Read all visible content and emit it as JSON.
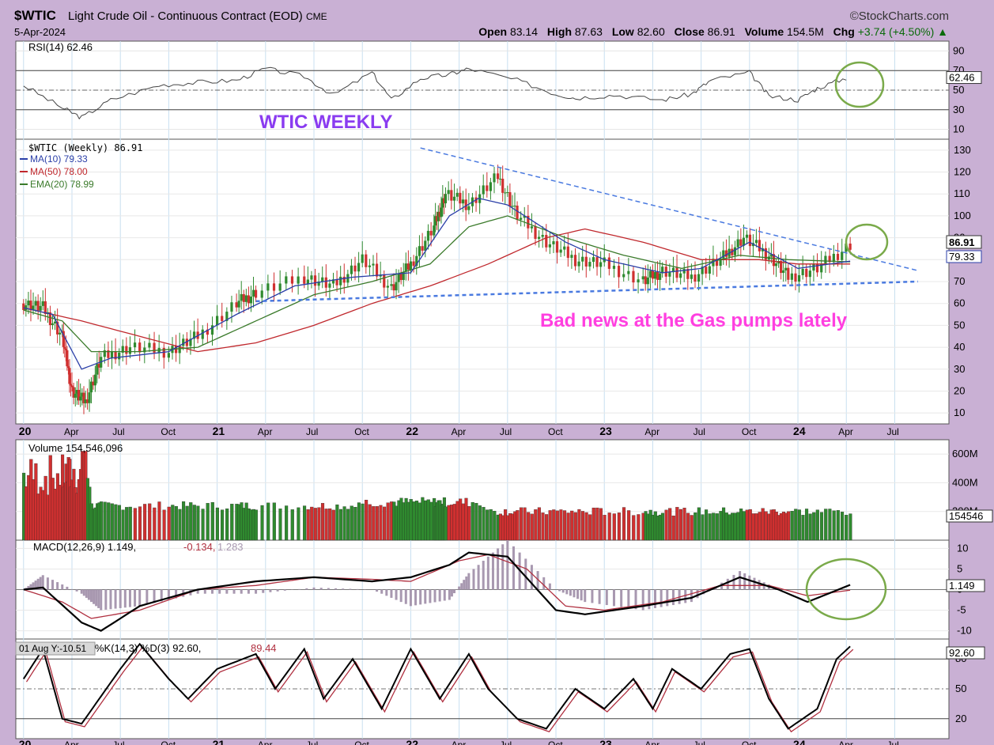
{
  "header": {
    "symbol": "$WTIC",
    "description": "Light Crude Oil - Continuous Contract (EOD)",
    "exchange": "CME",
    "date": "5-Apr-2024",
    "logo": "©StockCharts.com",
    "open_label": "Open",
    "open": "83.14",
    "high_label": "High",
    "high": "87.63",
    "low_label": "Low",
    "low": "82.60",
    "close_label": "Close",
    "close": "86.91",
    "volume_label": "Volume",
    "volume": "154.5M",
    "chg_label": "Chg",
    "chg": "+3.74 (+4.50%)"
  },
  "colors": {
    "up": "#2f8a2f",
    "down": "#d03030",
    "ma10": "#2b3fa8",
    "ma50": "#c0282d",
    "ema20": "#3a7a2a",
    "annotation_purple": "#8a3cf0",
    "annotation_pink": "#ff3fe0",
    "circle": "#7aaa4a",
    "trendline": "#4a7ae0"
  },
  "chart_data": [
    {
      "type": "line",
      "panel": "RSI",
      "legend": "RSI(14) 62.46",
      "last_label": "62.46",
      "yticks": [
        10,
        30,
        50,
        70,
        90
      ],
      "ylim": [
        0,
        100
      ],
      "values": [
        [
          2020.0,
          55
        ],
        [
          2020.2,
          32
        ],
        [
          2020.3,
          22
        ],
        [
          2020.45,
          40
        ],
        [
          2020.7,
          55
        ],
        [
          2020.9,
          58
        ],
        [
          2021.1,
          60
        ],
        [
          2021.25,
          72
        ],
        [
          2021.45,
          64
        ],
        [
          2021.6,
          45
        ],
        [
          2021.8,
          68
        ],
        [
          2021.9,
          40
        ],
        [
          2022.05,
          62
        ],
        [
          2022.2,
          66
        ],
        [
          2022.3,
          72
        ],
        [
          2022.55,
          60
        ],
        [
          2022.75,
          46
        ],
        [
          2022.85,
          42
        ],
        [
          2023.05,
          45
        ],
        [
          2023.3,
          40
        ],
        [
          2023.45,
          46
        ],
        [
          2023.55,
          60
        ],
        [
          2023.75,
          68
        ],
        [
          2023.85,
          44
        ],
        [
          2024.0,
          40
        ],
        [
          2024.1,
          52
        ],
        [
          2024.25,
          62.46
        ]
      ],
      "annotation": "WTIC WEEKLY"
    },
    {
      "type": "candlestick",
      "panel": "price",
      "legend": [
        "$WTIC (Weekly) 86.91",
        "MA(10) 79.33",
        "MA(50) 78.00",
        "EMA(20) 78.99"
      ],
      "yticks": [
        10,
        20,
        30,
        40,
        50,
        60,
        70,
        80,
        90,
        100,
        110,
        120,
        130
      ],
      "ylim": [
        5,
        135
      ],
      "last_price_label": "86.91",
      "ma10_label": "79.33",
      "xlabels": [
        "20",
        "Apr",
        "Jul",
        "Oct",
        "21",
        "Apr",
        "Jul",
        "Oct",
        "22",
        "Apr",
        "Jul",
        "Oct",
        "23",
        "Apr",
        "Jul",
        "Oct",
        "24",
        "Apr",
        "Jul"
      ],
      "xpositions": [
        2020.0,
        2020.25,
        2020.5,
        2020.75,
        2021.0,
        2021.25,
        2021.5,
        2021.75,
        2022.0,
        2022.25,
        2022.5,
        2022.75,
        2023.0,
        2023.25,
        2023.5,
        2023.75,
        2024.0,
        2024.25,
        2024.5
      ],
      "close": [
        [
          2020.0,
          60
        ],
        [
          2020.1,
          58
        ],
        [
          2020.2,
          45
        ],
        [
          2020.25,
          20
        ],
        [
          2020.32,
          15
        ],
        [
          2020.4,
          35
        ],
        [
          2020.55,
          40
        ],
        [
          2020.75,
          38
        ],
        [
          2020.9,
          45
        ],
        [
          2021.1,
          60
        ],
        [
          2021.2,
          65
        ],
        [
          2021.45,
          72
        ],
        [
          2021.6,
          68
        ],
        [
          2021.75,
          80
        ],
        [
          2021.9,
          67
        ],
        [
          2022.0,
          78
        ],
        [
          2022.12,
          95
        ],
        [
          2022.18,
          110
        ],
        [
          2022.3,
          105
        ],
        [
          2022.45,
          118
        ],
        [
          2022.55,
          100
        ],
        [
          2022.7,
          88
        ],
        [
          2022.85,
          80
        ],
        [
          2023.0,
          78
        ],
        [
          2023.2,
          70
        ],
        [
          2023.3,
          75
        ],
        [
          2023.45,
          72
        ],
        [
          2023.6,
          80
        ],
        [
          2023.72,
          90
        ],
        [
          2023.85,
          82
        ],
        [
          2023.95,
          72
        ],
        [
          2024.1,
          76
        ],
        [
          2024.27,
          86.91
        ]
      ],
      "ma50": [
        [
          2020.0,
          58
        ],
        [
          2020.3,
          52
        ],
        [
          2020.6,
          45
        ],
        [
          2020.9,
          38
        ],
        [
          2021.2,
          42
        ],
        [
          2021.5,
          50
        ],
        [
          2021.8,
          60
        ],
        [
          2022.1,
          68
        ],
        [
          2022.4,
          78
        ],
        [
          2022.7,
          90
        ],
        [
          2022.9,
          94
        ],
        [
          2023.2,
          88
        ],
        [
          2023.5,
          80
        ],
        [
          2023.8,
          80
        ],
        [
          2024.0,
          78
        ],
        [
          2024.27,
          78
        ]
      ],
      "ma10": [
        [
          2020.0,
          58
        ],
        [
          2020.15,
          55
        ],
        [
          2020.3,
          30
        ],
        [
          2020.45,
          35
        ],
        [
          2020.75,
          38
        ],
        [
          2021.1,
          55
        ],
        [
          2021.4,
          68
        ],
        [
          2021.7,
          72
        ],
        [
          2022.0,
          74
        ],
        [
          2022.2,
          100
        ],
        [
          2022.35,
          108
        ],
        [
          2022.5,
          105
        ],
        [
          2022.8,
          88
        ],
        [
          2023.0,
          80
        ],
        [
          2023.3,
          74
        ],
        [
          2023.5,
          76
        ],
        [
          2023.75,
          88
        ],
        [
          2024.0,
          76
        ],
        [
          2024.27,
          79.33
        ]
      ],
      "ema20": [
        [
          2020.0,
          57
        ],
        [
          2020.2,
          52
        ],
        [
          2020.35,
          38
        ],
        [
          2020.6,
          38
        ],
        [
          2020.9,
          40
        ],
        [
          2021.2,
          52
        ],
        [
          2021.5,
          64
        ],
        [
          2021.8,
          70
        ],
        [
          2022.1,
          78
        ],
        [
          2022.3,
          95
        ],
        [
          2022.5,
          100
        ],
        [
          2022.8,
          90
        ],
        [
          2023.1,
          82
        ],
        [
          2023.4,
          76
        ],
        [
          2023.7,
          82
        ],
        [
          2023.95,
          80
        ],
        [
          2024.27,
          78.99
        ]
      ],
      "annotation": "Bad news at the Gas pumps lately"
    },
    {
      "type": "bar",
      "panel": "volume",
      "legend": "Volume 154,546,096",
      "last_label": "154546",
      "yticks_labels": [
        "600M",
        "400M",
        "200M"
      ],
      "yticks": [
        600,
        400,
        200
      ],
      "ylim": [
        0,
        700
      ]
    },
    {
      "type": "line",
      "panel": "MACD",
      "legend_main": "MACD(12,26,9) 1.149,",
      "legend_signal": "-0.134,",
      "legend_hist": "1.283",
      "last_label": "1.149",
      "yticks": [
        10,
        5,
        0,
        -5,
        -10
      ],
      "ylim": [
        -12,
        12
      ],
      "macd": [
        [
          2020.0,
          0
        ],
        [
          2020.1,
          0.5
        ],
        [
          2020.3,
          -8
        ],
        [
          2020.4,
          -10
        ],
        [
          2020.6,
          -4
        ],
        [
          2020.9,
          0
        ],
        [
          2021.2,
          2
        ],
        [
          2021.5,
          3
        ],
        [
          2021.8,
          2
        ],
        [
          2022.0,
          3
        ],
        [
          2022.2,
          6
        ],
        [
          2022.3,
          9
        ],
        [
          2022.5,
          8
        ],
        [
          2022.75,
          -5
        ],
        [
          2022.9,
          -6
        ],
        [
          2023.2,
          -4
        ],
        [
          2023.45,
          -2
        ],
        [
          2023.7,
          3
        ],
        [
          2023.9,
          0
        ],
        [
          2024.05,
          -3
        ],
        [
          2024.27,
          1.149
        ]
      ],
      "signal": [
        [
          2020.0,
          0
        ],
        [
          2020.2,
          -3
        ],
        [
          2020.35,
          -7
        ],
        [
          2020.6,
          -5
        ],
        [
          2020.9,
          0
        ],
        [
          2021.2,
          1
        ],
        [
          2021.5,
          3
        ],
        [
          2021.8,
          2.5
        ],
        [
          2022.0,
          2
        ],
        [
          2022.25,
          7
        ],
        [
          2022.4,
          8.5
        ],
        [
          2022.6,
          5
        ],
        [
          2022.8,
          -4
        ],
        [
          2023.0,
          -5
        ],
        [
          2023.3,
          -3
        ],
        [
          2023.6,
          1
        ],
        [
          2023.85,
          1
        ],
        [
          2024.05,
          -1.5
        ],
        [
          2024.27,
          -0.134
        ]
      ]
    },
    {
      "type": "line",
      "panel": "stochastic",
      "legend": "%K(14,3) %D(3) 92.60,",
      "legend_d": "89.44",
      "crosshair_label": "01 Aug Y:-10.51",
      "last_label": "92.60",
      "yticks": [
        80,
        50,
        20
      ],
      "ylim": [
        0,
        100
      ],
      "k": [
        [
          2020.0,
          60
        ],
        [
          2020.1,
          90
        ],
        [
          2020.2,
          20
        ],
        [
          2020.3,
          15
        ],
        [
          2020.5,
          70
        ],
        [
          2020.6,
          95
        ],
        [
          2020.75,
          60
        ],
        [
          2020.85,
          40
        ],
        [
          2021.0,
          70
        ],
        [
          2021.2,
          85
        ],
        [
          2021.3,
          50
        ],
        [
          2021.45,
          90
        ],
        [
          2021.55,
          40
        ],
        [
          2021.7,
          80
        ],
        [
          2021.85,
          30
        ],
        [
          2022.0,
          90
        ],
        [
          2022.15,
          40
        ],
        [
          2022.3,
          85
        ],
        [
          2022.4,
          50
        ],
        [
          2022.55,
          20
        ],
        [
          2022.7,
          10
        ],
        [
          2022.85,
          50
        ],
        [
          2023.0,
          30
        ],
        [
          2023.15,
          60
        ],
        [
          2023.25,
          30
        ],
        [
          2023.35,
          70
        ],
        [
          2023.5,
          50
        ],
        [
          2023.65,
          85
        ],
        [
          2023.75,
          90
        ],
        [
          2023.85,
          40
        ],
        [
          2023.95,
          10
        ],
        [
          2024.1,
          30
        ],
        [
          2024.2,
          80
        ],
        [
          2024.27,
          92.6
        ]
      ]
    }
  ]
}
